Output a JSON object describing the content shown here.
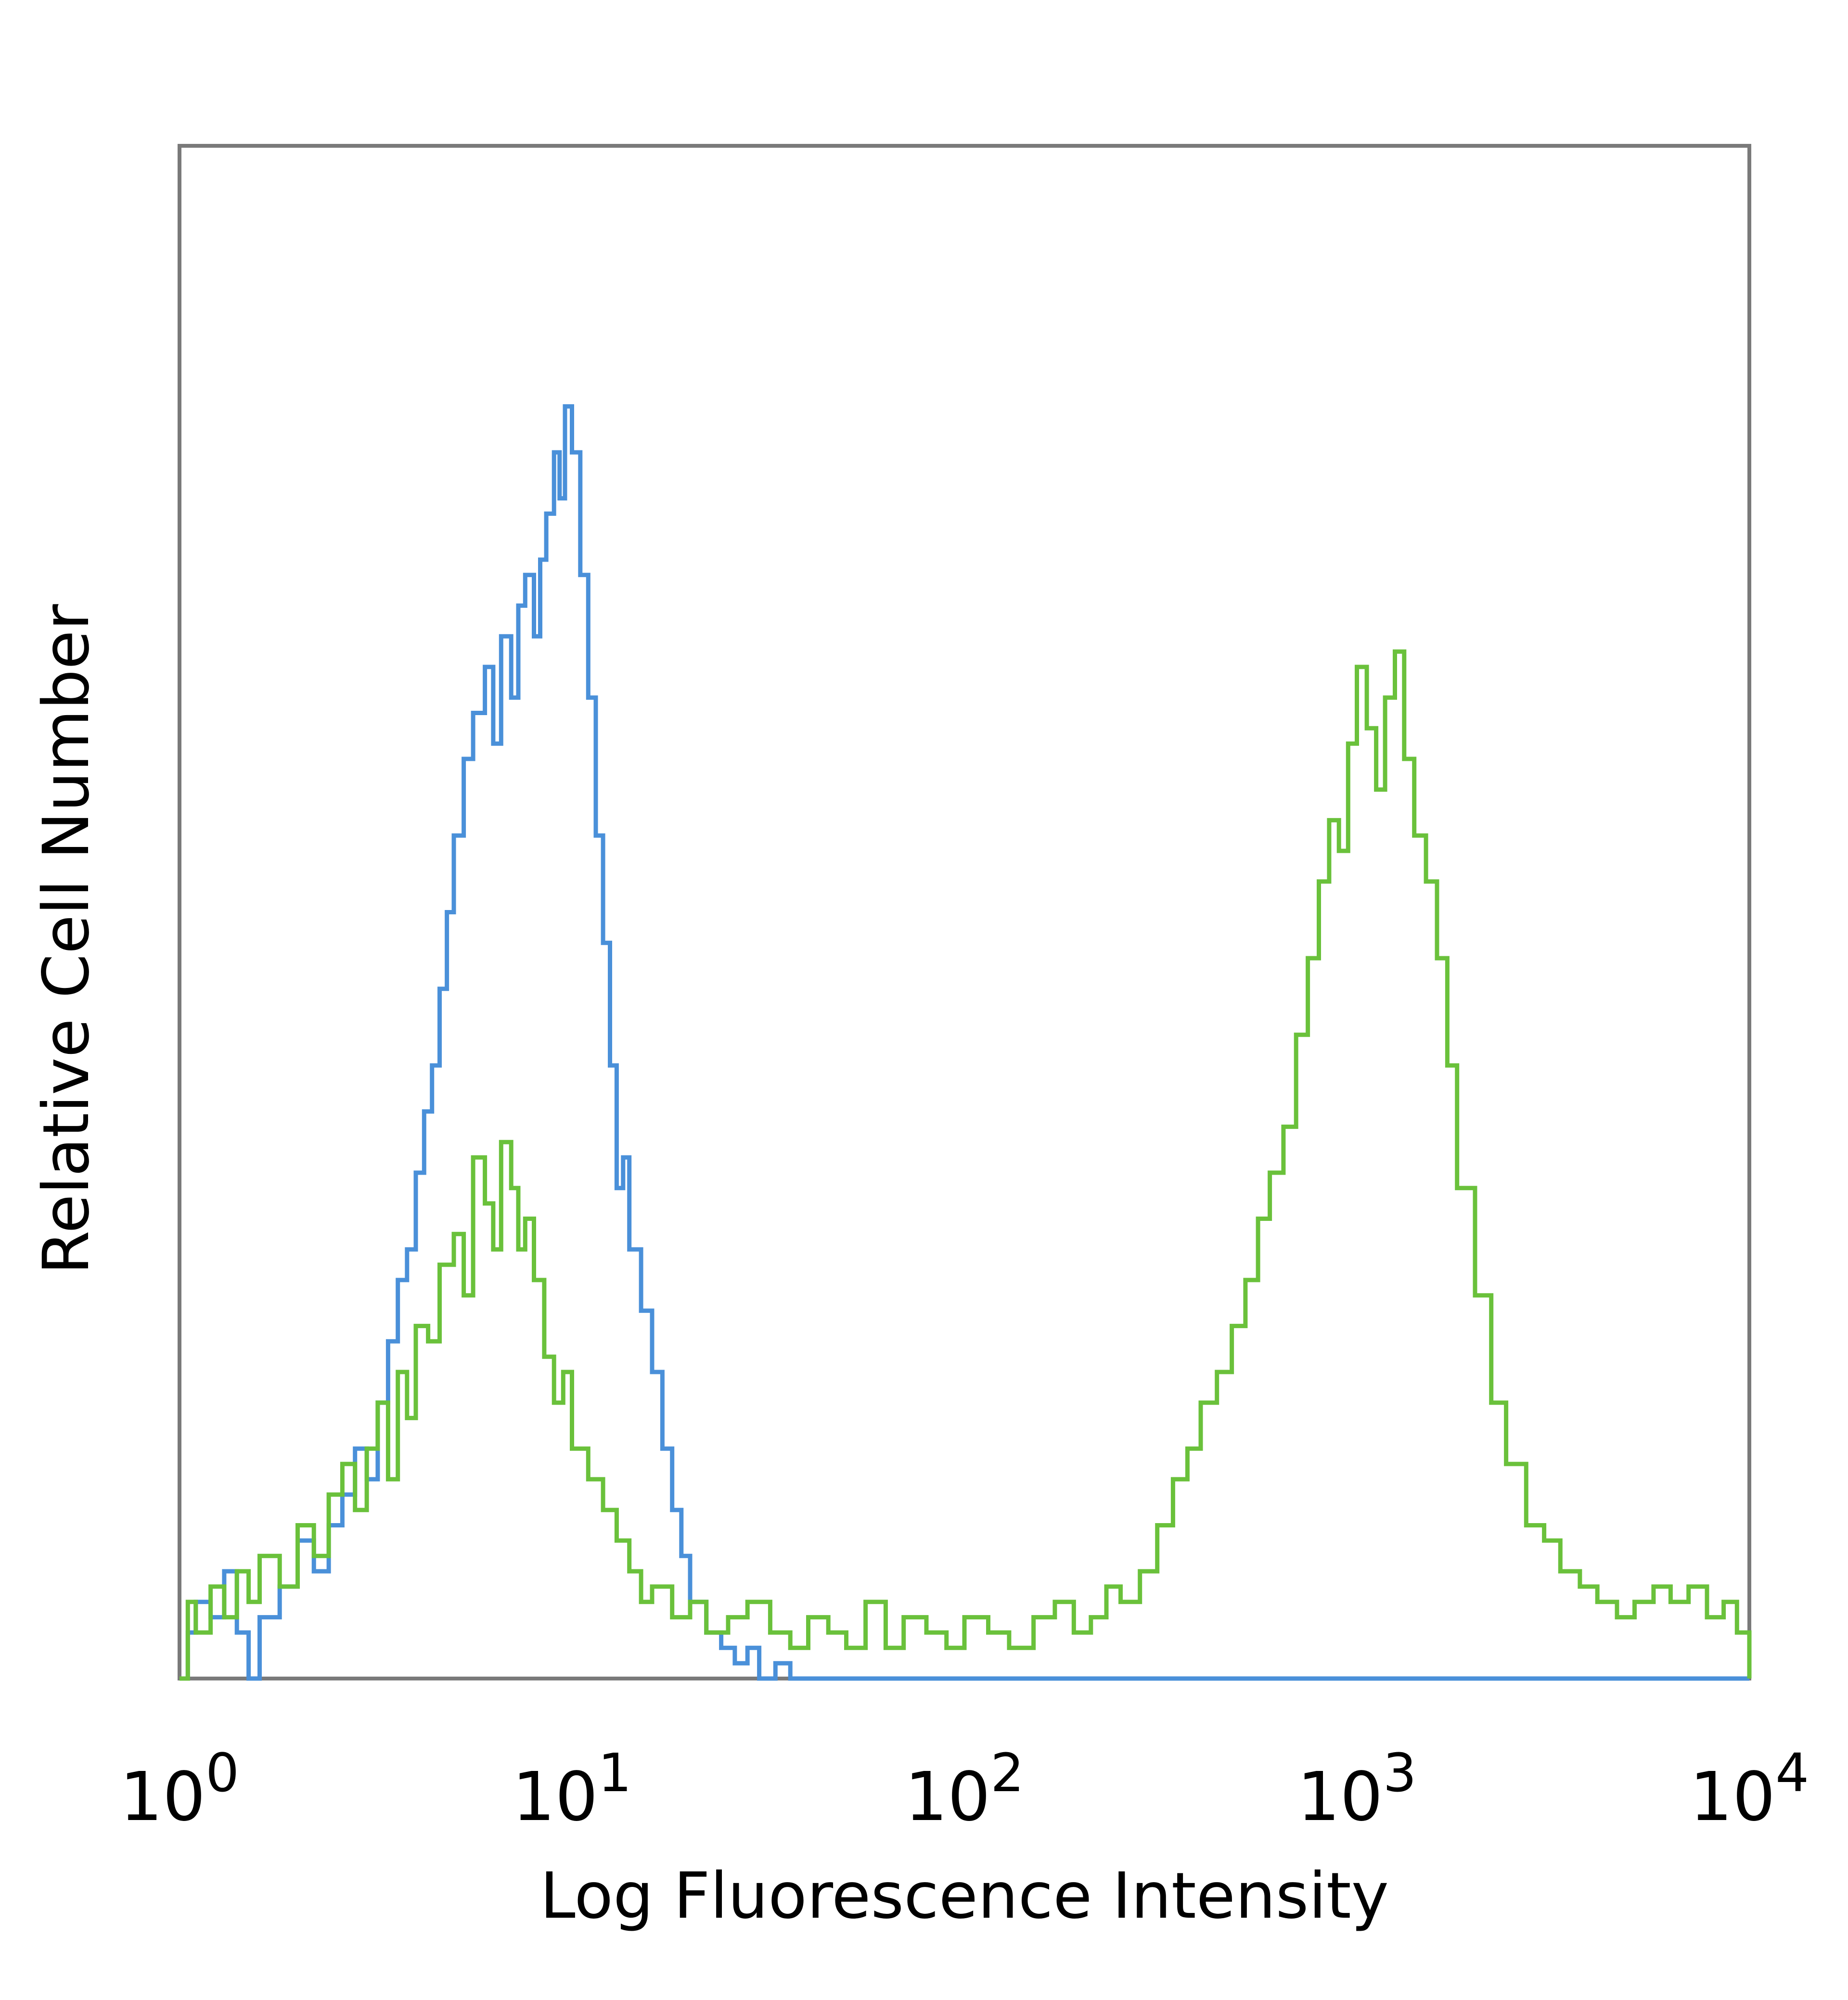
{
  "chart_data": {
    "type": "line",
    "title": "",
    "xlabel": "Log Fluorescence Intensity",
    "ylabel": "Relative Cell Number",
    "x_scale": "log",
    "xlim": [
      1,
      10000
    ],
    "ylim": [
      0,
      100
    ],
    "grid": false,
    "legend": "none",
    "x_ticks": [
      {
        "value": 1,
        "base": "10",
        "exp": "0"
      },
      {
        "value": 10,
        "base": "10",
        "exp": "1"
      },
      {
        "value": 100,
        "base": "10",
        "exp": "2"
      },
      {
        "value": 1000,
        "base": "10",
        "exp": "3"
      },
      {
        "value": 10000,
        "base": "10",
        "exp": "4"
      }
    ],
    "series": [
      {
        "color": "#4a90d9",
        "x": [
          1.0,
          1.05,
          1.1,
          1.2,
          1.3,
          1.4,
          1.5,
          1.6,
          1.8,
          2.0,
          2.2,
          2.4,
          2.6,
          2.8,
          3.0,
          3.2,
          3.4,
          3.6,
          3.8,
          4.0,
          4.2,
          4.4,
          4.6,
          4.8,
          5.0,
          5.3,
          5.6,
          6.0,
          6.3,
          6.6,
          7.0,
          7.3,
          7.6,
          8.0,
          8.3,
          8.6,
          9.0,
          9.3,
          9.6,
          10.0,
          10.5,
          11.0,
          11.5,
          12.0,
          12.5,
          13.0,
          13.5,
          14.0,
          15.0,
          16.0,
          17.0,
          18.0,
          19.0,
          20.0,
          22.0,
          24.0,
          26.0,
          28.0,
          30.0,
          33.0,
          36.0,
          40.0,
          60.0,
          100.0,
          1000.0,
          10000.0
        ],
        "values": [
          0,
          3,
          5,
          4,
          7,
          3,
          0,
          4,
          6,
          9,
          7,
          10,
          12,
          15,
          13,
          18,
          22,
          26,
          28,
          33,
          37,
          40,
          45,
          50,
          55,
          60,
          63,
          66,
          61,
          68,
          64,
          70,
          72,
          68,
          73,
          76,
          80,
          77,
          83,
          80,
          72,
          64,
          55,
          48,
          40,
          32,
          34,
          28,
          24,
          20,
          15,
          11,
          8,
          5,
          3,
          2,
          1,
          2,
          0,
          1,
          0,
          0,
          0,
          0,
          0,
          0
        ]
      },
      {
        "color": "#6ac13b",
        "x": [
          1.0,
          1.05,
          1.1,
          1.2,
          1.3,
          1.4,
          1.5,
          1.6,
          1.8,
          2.0,
          2.2,
          2.4,
          2.6,
          2.8,
          3.0,
          3.2,
          3.4,
          3.6,
          3.8,
          4.0,
          4.3,
          4.6,
          5.0,
          5.3,
          5.6,
          6.0,
          6.3,
          6.6,
          7.0,
          7.3,
          7.6,
          8.0,
          8.5,
          9.0,
          9.5,
          10.0,
          11.0,
          12.0,
          13.0,
          14.0,
          15.0,
          16.0,
          18.0,
          20.0,
          22.0,
          25.0,
          28.0,
          32.0,
          36.0,
          40.0,
          45.0,
          50.0,
          56.0,
          63.0,
          70.0,
          80.0,
          90.0,
          100.0,
          115.0,
          130.0,
          150.0,
          170.0,
          190.0,
          210.0,
          230.0,
          250.0,
          280.0,
          310.0,
          340.0,
          370.0,
          400.0,
          440.0,
          480.0,
          520.0,
          560.0,
          600.0,
          650.0,
          700.0,
          750.0,
          800.0,
          850.0,
          900.0,
          950.0,
          1000.0,
          1060.0,
          1120.0,
          1180.0,
          1250.0,
          1320.0,
          1400.0,
          1500.0,
          1600.0,
          1700.0,
          1800.0,
          2000.0,
          2200.0,
          2400.0,
          2700.0,
          3000.0,
          3300.0,
          3700.0,
          4100.0,
          4600.0,
          5100.0,
          5700.0,
          6300.0,
          7000.0,
          7800.0,
          8600.0,
          9300.0,
          10000.0
        ],
        "values": [
          0,
          5,
          3,
          6,
          4,
          7,
          5,
          8,
          6,
          10,
          8,
          12,
          14,
          11,
          15,
          18,
          13,
          20,
          17,
          23,
          22,
          27,
          29,
          25,
          34,
          31,
          28,
          35,
          32,
          28,
          30,
          26,
          21,
          18,
          20,
          15,
          13,
          11,
          9,
          7,
          5,
          6,
          4,
          5,
          3,
          4,
          5,
          3,
          2,
          4,
          3,
          2,
          5,
          2,
          4,
          3,
          2,
          4,
          3,
          2,
          4,
          5,
          3,
          4,
          6,
          5,
          7,
          10,
          13,
          15,
          18,
          20,
          23,
          26,
          30,
          33,
          36,
          42,
          47,
          52,
          56,
          54,
          61,
          66,
          62,
          58,
          64,
          67,
          60,
          55,
          52,
          47,
          40,
          32,
          25,
          18,
          14,
          10,
          9,
          7,
          6,
          5,
          4,
          5,
          6,
          5,
          6,
          4,
          5,
          3,
          0
        ]
      }
    ]
  }
}
